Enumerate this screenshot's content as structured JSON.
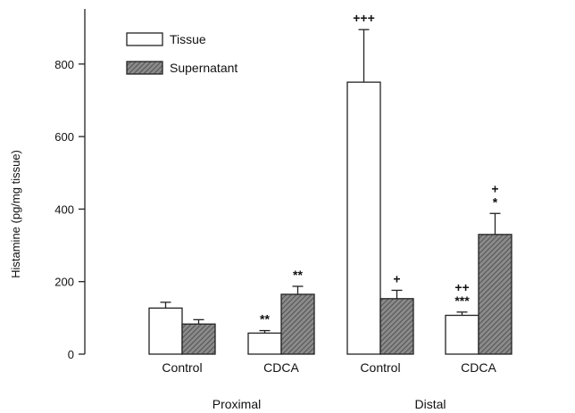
{
  "chart_data": {
    "type": "bar",
    "ylabel": "Histamine (pg/mg tissue)",
    "xlabel": "",
    "ylim": [
      0,
      950
    ],
    "yticks": [
      0,
      200,
      400,
      600,
      800
    ],
    "grid": false,
    "legend_position": "top-left",
    "groups": [
      {
        "label": "Proximal",
        "categories": [
          "Control",
          "CDCA"
        ]
      },
      {
        "label": "Distal",
        "categories": [
          "Control",
          "CDCA"
        ]
      }
    ],
    "categories": [
      "Control",
      "CDCA",
      "Control",
      "CDCA"
    ],
    "series": [
      {
        "name": "Tissue",
        "fill": "#ffffff",
        "values": [
          127,
          58,
          750,
          107
        ],
        "errors": [
          16,
          7,
          145,
          9
        ],
        "annotations": [
          "",
          "**",
          "+++",
          "++\n***"
        ]
      },
      {
        "name": "Supernatant",
        "fill": "#7a7a7a",
        "values": [
          83,
          165,
          153,
          330
        ],
        "errors": [
          12,
          22,
          23,
          58
        ],
        "annotations": [
          "",
          "**",
          "+",
          "+\n*"
        ]
      }
    ]
  }
}
